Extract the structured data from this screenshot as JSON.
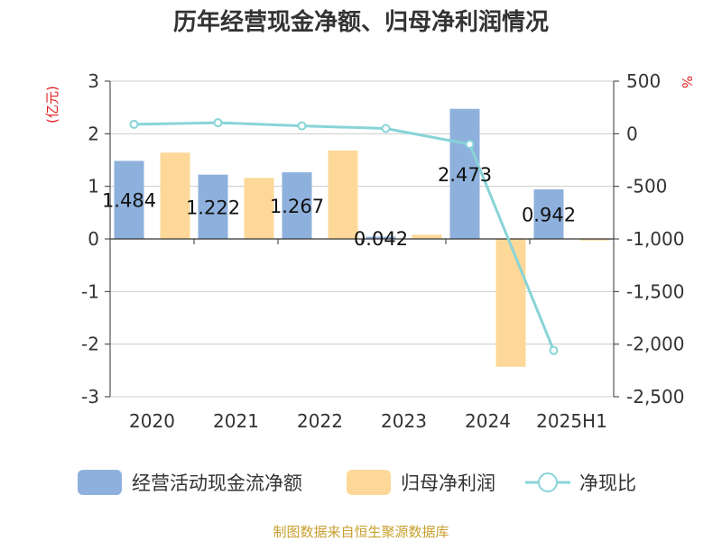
{
  "chart_data": {
    "type": "bar",
    "title": "历年经营现金净额、归母净利润情况",
    "categories": [
      "2020",
      "2021",
      "2022",
      "2023",
      "2024",
      "2025H1"
    ],
    "left_axis": {
      "unit": "(亿元)",
      "ylim": [
        -3,
        3
      ],
      "ticks": [
        "3",
        "2",
        "1",
        "0",
        "-1",
        "-2",
        "-3"
      ]
    },
    "right_axis": {
      "unit": "%",
      "ylim": [
        -2500,
        500
      ],
      "ticks": [
        "500",
        "0",
        "-500",
        "-1,000",
        "-1,500",
        "-2,000",
        "-2,500"
      ]
    },
    "series": [
      {
        "name": "经营活动现金流净额",
        "kind": "bar",
        "axis": "left",
        "color": "#8eb0dc",
        "values": [
          1.484,
          1.222,
          1.267,
          0.042,
          2.473,
          0.942
        ],
        "labels": [
          "1.484",
          "1.222",
          "1.267",
          "0.042",
          "2.473",
          "0.942"
        ]
      },
      {
        "name": "归母净利润",
        "kind": "bar",
        "axis": "left",
        "color": "#fdd898",
        "values": [
          1.64,
          1.16,
          1.68,
          0.08,
          -2.43,
          -0.03
        ]
      },
      {
        "name": "净现比",
        "kind": "line",
        "axis": "right",
        "color": "#88d4d8",
        "values": [
          90,
          105,
          75,
          50,
          -100,
          -2060
        ]
      }
    ],
    "grid": true,
    "legend_position": "bottom"
  },
  "source": "制图数据来自恒生聚源数据库"
}
